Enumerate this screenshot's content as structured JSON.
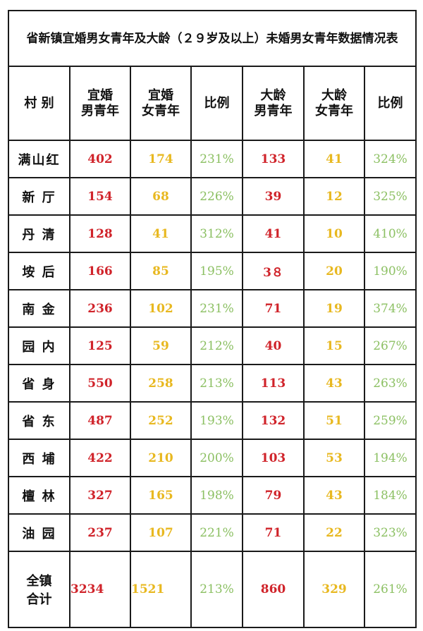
{
  "title": "省新镇宜婚男女青年及大龄（２９岁及以上）未婚男女青年数据情况表",
  "headers": {
    "village": "村 别",
    "marriageable_male": [
      "宜婚",
      "男青年"
    ],
    "marriageable_female": [
      "宜婚",
      "女青年"
    ],
    "ratio1": "比例",
    "older_male": [
      "大龄",
      "男青年"
    ],
    "older_female": [
      "大龄",
      "女青年"
    ],
    "ratio2": "比例"
  },
  "colors": {
    "male": "#d0232a",
    "female": "#e8b820",
    "ratio": "#8cc063",
    "border": "#1a1a1a"
  },
  "rows": [
    {
      "village": "满山红",
      "m_male": "402",
      "m_female": "174",
      "ratio1": "231%",
      "o_male": "133",
      "o_female": "41",
      "ratio2": "324%"
    },
    {
      "village": "新 厅",
      "m_male": "154",
      "m_female": "68",
      "ratio1": "226%",
      "o_male": "39",
      "o_female": "12",
      "ratio2": "325%"
    },
    {
      "village": "丹 清",
      "m_male": "128",
      "m_female": "41",
      "ratio1": "312%",
      "o_male": "41",
      "o_female": "10",
      "ratio2": "410%"
    },
    {
      "village": "垵 后",
      "m_male": "166",
      "m_female": "85",
      "ratio1": "195%",
      "o_male": "3８",
      "o_female": "20",
      "ratio2": "190%"
    },
    {
      "village": "南 金",
      "m_male": "236",
      "m_female": "102",
      "ratio1": "231%",
      "o_male": "71",
      "o_female": "19",
      "ratio2": "374%"
    },
    {
      "village": "园 内",
      "m_male": "125",
      "m_female": "59",
      "ratio1": "212%",
      "o_male": "40",
      "o_female": "15",
      "ratio2": "267%"
    },
    {
      "village": "省 身",
      "m_male": "550",
      "m_female": "258",
      "ratio1": "213%",
      "o_male": "113",
      "o_female": "43",
      "ratio2": "263%"
    },
    {
      "village": "省 东",
      "m_male": "487",
      "m_female": "252",
      "ratio1": "193%",
      "o_male": "132",
      "o_female": "51",
      "ratio2": "259%"
    },
    {
      "village": "西 埔",
      "m_male": "422",
      "m_female": "210",
      "ratio1": "200%",
      "o_male": "103",
      "o_female": "53",
      "ratio2": "194%"
    },
    {
      "village": "檀 林",
      "m_male": "327",
      "m_female": "165",
      "ratio1": "198%",
      "o_male": "79",
      "o_female": "43",
      "ratio2": "184%"
    },
    {
      "village": "油 园",
      "m_male": "237",
      "m_female": "107",
      "ratio1": "221%",
      "o_male": "71",
      "o_female": "22",
      "ratio2": "323%"
    }
  ],
  "total": {
    "label": [
      "全镇",
      "合计"
    ],
    "m_male": "3234",
    "m_female": "1521",
    "ratio1": "213%",
    "o_male": "860",
    "o_female": "329",
    "ratio2": "261%"
  }
}
